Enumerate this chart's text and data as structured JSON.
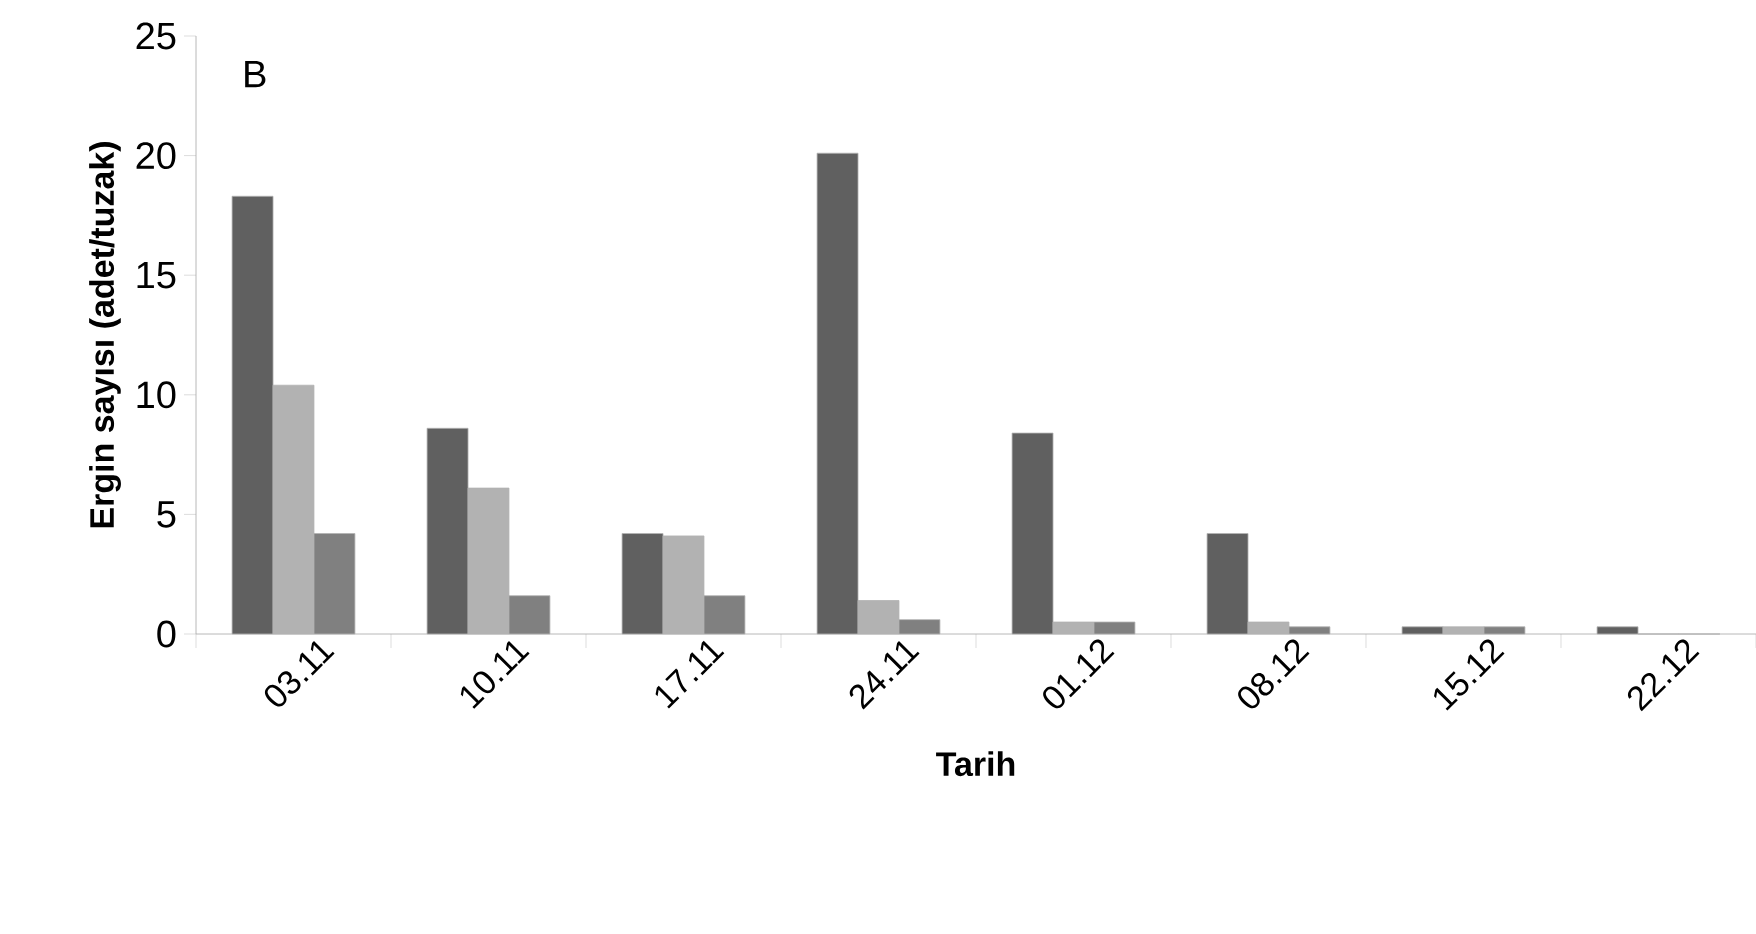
{
  "chart_data": {
    "type": "bar",
    "ylabel": "Ergin sayısı (adet/tuzak)",
    "xlabel": "Tarih",
    "categories": [
      "03.11",
      "10.11",
      "17.11",
      "24.11",
      "01.12",
      "08.12",
      "15.12",
      "22.12"
    ],
    "series": [
      {
        "color": "#606060",
        "values": [
          18.3,
          8.6,
          4.2,
          20.1,
          8.4,
          4.2,
          0.3,
          0.3
        ]
      },
      {
        "color": "#b2b2b2",
        "values": [
          10.4,
          6.1,
          4.1,
          1.4,
          0.5,
          0.5,
          0.3,
          0
        ]
      },
      {
        "color": "#808080",
        "values": [
          4.2,
          1.6,
          1.6,
          0.6,
          0.5,
          0.3,
          0.3,
          0
        ]
      }
    ],
    "ylim": [
      0,
      25
    ],
    "yticks": [
      0,
      5,
      10,
      15,
      20,
      25
    ],
    "grid": false,
    "annotations": [
      "B"
    ]
  }
}
